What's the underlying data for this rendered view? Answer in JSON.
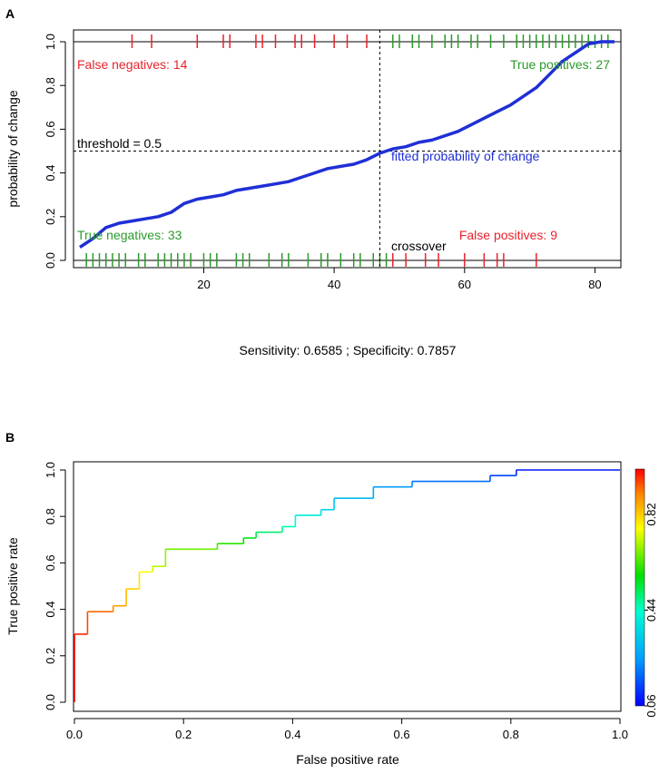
{
  "panels": {
    "a_label": "A",
    "b_label": "B"
  },
  "colors": {
    "curve": "#1f2fd6",
    "red": "#e8222b",
    "green": "#2a9a2a",
    "axis": "#000000"
  },
  "chart_data": [
    {
      "id": "A",
      "type": "line",
      "title": "",
      "xlabel": "",
      "ylabel": "probability of change",
      "xlim": [
        1,
        83
      ],
      "ylim": [
        0,
        1
      ],
      "xticks": [
        20,
        40,
        60,
        80
      ],
      "yticks": [
        0.0,
        0.2,
        0.4,
        0.6,
        0.8,
        1.0
      ],
      "ytick_labels": [
        "0.0",
        "0.2",
        "0.4",
        "0.6",
        "0.8",
        "1.0"
      ],
      "threshold": 0.5,
      "crossover_x": 47,
      "series": [
        {
          "name": "fitted probability of change",
          "x": [
            1,
            3,
            5,
            7,
            9,
            11,
            13,
            15,
            17,
            19,
            21,
            23,
            25,
            27,
            29,
            31,
            33,
            35,
            37,
            39,
            41,
            43,
            45,
            47,
            49,
            51,
            53,
            55,
            57,
            59,
            61,
            63,
            65,
            67,
            69,
            71,
            73,
            75,
            77,
            79,
            81,
            83
          ],
          "y": [
            0.06,
            0.1,
            0.15,
            0.17,
            0.18,
            0.19,
            0.2,
            0.22,
            0.26,
            0.28,
            0.29,
            0.3,
            0.32,
            0.33,
            0.34,
            0.35,
            0.36,
            0.38,
            0.4,
            0.42,
            0.43,
            0.44,
            0.46,
            0.49,
            0.51,
            0.52,
            0.54,
            0.55,
            0.57,
            0.59,
            0.62,
            0.65,
            0.68,
            0.71,
            0.75,
            0.79,
            0.85,
            0.91,
            0.95,
            0.99,
            1.0,
            1.0
          ]
        }
      ],
      "rug_top_red": [
        9,
        12,
        19,
        23,
        24,
        28,
        29,
        31,
        34,
        35,
        37,
        40,
        42,
        45
      ],
      "rug_top_green": [
        49,
        50,
        52,
        53,
        55,
        57,
        58,
        59,
        61,
        62,
        64,
        66,
        68,
        69,
        70,
        71,
        72,
        73,
        74,
        75,
        76,
        77,
        78,
        79,
        80,
        81,
        82
      ],
      "rug_bottom_green": [
        2,
        3,
        4,
        5,
        6,
        7,
        8,
        10,
        11,
        13,
        14,
        15,
        16,
        17,
        18,
        20,
        21,
        22,
        25,
        26,
        27,
        30,
        32,
        33,
        36,
        38,
        39,
        41,
        43,
        44,
        46,
        47,
        48
      ],
      "rug_bottom_red": [
        49,
        51,
        54,
        56,
        60,
        63,
        65,
        66,
        71
      ],
      "annotations": {
        "false_negatives": "False negatives: 14",
        "true_positives": "True positives: 27",
        "threshold": "threshold = 0.5",
        "fitted": "fitted probability of change",
        "true_negatives": "True negatives: 33",
        "false_positives": "False positives: 9",
        "crossover": "crossover"
      },
      "subtitle": "Sensitivity: 0.6585 ; Specificity: 0.7857"
    },
    {
      "id": "B",
      "type": "line",
      "title": "",
      "xlabel": "False positive rate",
      "ylabel": "True positive rate",
      "xlim": [
        0,
        1
      ],
      "ylim": [
        0,
        1
      ],
      "xticks": [
        0.0,
        0.2,
        0.4,
        0.6,
        0.8,
        1.0
      ],
      "xtick_labels": [
        "0.0",
        "0.2",
        "0.4",
        "0.6",
        "0.8",
        "1.0"
      ],
      "yticks": [
        0.0,
        0.2,
        0.4,
        0.6,
        0.8,
        1.0
      ],
      "ytick_labels": [
        "0.0",
        "0.2",
        "0.4",
        "0.6",
        "0.8",
        "1.0"
      ],
      "roc": {
        "fpr": [
          0.0,
          0.0,
          0.024,
          0.024,
          0.071,
          0.071,
          0.095,
          0.095,
          0.119,
          0.119,
          0.143,
          0.143,
          0.167,
          0.167,
          0.262,
          0.262,
          0.31,
          0.31,
          0.333,
          0.333,
          0.381,
          0.381,
          0.405,
          0.405,
          0.452,
          0.452,
          0.476,
          0.476,
          0.548,
          0.548,
          0.619,
          0.619,
          0.762,
          0.762,
          0.81,
          0.81,
          1.0
        ],
        "tpr": [
          0.0,
          0.293,
          0.293,
          0.39,
          0.39,
          0.415,
          0.415,
          0.488,
          0.488,
          0.561,
          0.561,
          0.585,
          0.585,
          0.659,
          0.659,
          0.683,
          0.683,
          0.707,
          0.707,
          0.732,
          0.732,
          0.756,
          0.756,
          0.805,
          0.805,
          0.829,
          0.829,
          0.878,
          0.878,
          0.927,
          0.927,
          0.951,
          0.951,
          0.976,
          0.976,
          1.0,
          1.0
        ]
      },
      "colorbar": {
        "range": [
          0.06,
          1.0
        ],
        "tick_values": [
          0.06,
          0.44,
          0.82
        ],
        "tick_labels": [
          "0.06",
          "0.44",
          "0.82"
        ]
      }
    }
  ]
}
